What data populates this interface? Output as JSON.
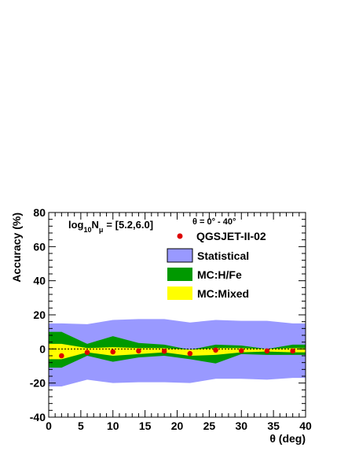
{
  "chart_data": {
    "type": "area",
    "ylabel": "Accuracy (%)",
    "xlabel": "θ (deg)",
    "xlim": [
      0,
      40
    ],
    "ylim": [
      -40,
      80
    ],
    "x_ticks": [
      0,
      5,
      10,
      15,
      20,
      25,
      30,
      35,
      40
    ],
    "y_ticks": [
      -40,
      -20,
      0,
      20,
      40,
      60,
      80
    ],
    "annotations": {
      "range_base": "log",
      "range_sub": "10",
      "range_var": "N",
      "range_sub2": "μ",
      "range_value": "= [5.2,6.0]",
      "theta_range": "θ = 0° - 40°"
    },
    "legend": {
      "placement": "top-right",
      "entries": [
        "QGSJET-II-02",
        "Statistical",
        "MC:H/Fe",
        "MC:Mixed"
      ]
    },
    "bins": [
      0,
      4,
      8,
      12,
      16,
      20,
      24,
      28,
      32,
      36,
      40
    ],
    "series": [
      {
        "name": "Statistical",
        "color": "#9999ff",
        "upper": [
          15,
          14.5,
          17,
          17.5,
          17.5,
          15.5,
          17,
          16.5,
          16.5,
          15
        ],
        "lower": [
          -22,
          -18,
          -20,
          -19.5,
          -19.5,
          -20,
          -17.5,
          -17.5,
          -18,
          -17
        ]
      },
      {
        "name": "MC:H/Fe",
        "color": "#009900",
        "upper": [
          10,
          3,
          7.5,
          3.5,
          2.5,
          -0.5,
          2.5,
          2,
          0,
          2.5
        ],
        "lower": [
          -11,
          -4,
          -7.5,
          -5,
          -4,
          -6,
          -8.5,
          -3,
          -3.5,
          -3.5
        ]
      },
      {
        "name": "MC:Mixed",
        "color": "#ffff00",
        "upper": [
          3,
          0.5,
          1,
          0.5,
          0.5,
          -0.5,
          0.5,
          0.5,
          0,
          0.5
        ],
        "lower": [
          -6,
          -2,
          -4,
          -3,
          -2,
          -4,
          -3.5,
          -2,
          -1.5,
          -2
        ]
      },
      {
        "name": "QGSJET-II-02",
        "color": "#dd0000",
        "x": [
          2,
          6,
          10,
          14,
          18,
          22,
          26,
          30,
          34,
          38
        ],
        "y": [
          -4,
          -2,
          -1.7,
          -1.2,
          -1.3,
          -2.7,
          -0.7,
          -1.0,
          -1.2,
          -1.2
        ]
      }
    ]
  }
}
